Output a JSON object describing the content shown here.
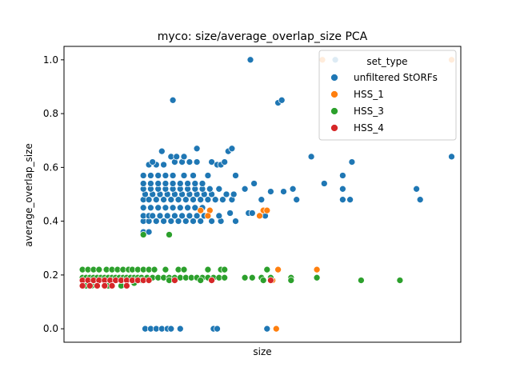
{
  "chart_data": {
    "type": "scatter",
    "title": "myco: size/average_overlap_size PCA",
    "xlabel": "size",
    "ylabel": "average_overlap_size",
    "xlim": [
      -0.1,
      2.05
    ],
    "ylim": [
      -0.05,
      1.05
    ],
    "x_ticks_shown": false,
    "yticks": [
      "0.0",
      "0.2",
      "0.4",
      "0.6",
      "0.8",
      "1.0"
    ],
    "ytick_values": [
      0.0,
      0.2,
      0.4,
      0.6,
      0.8,
      1.0
    ],
    "grid": false,
    "legend": {
      "title": "set_type",
      "placement": "upper-right"
    },
    "series": [
      {
        "name": "unfiltered StORFs",
        "color": "#1f77b4",
        "points": [
          [
            0.33,
            0.36
          ],
          [
            0.36,
            0.36
          ],
          [
            0.33,
            0.4
          ],
          [
            0.36,
            0.4
          ],
          [
            0.4,
            0.4
          ],
          [
            0.44,
            0.4
          ],
          [
            0.48,
            0.4
          ],
          [
            0.52,
            0.4
          ],
          [
            0.56,
            0.4
          ],
          [
            0.6,
            0.4
          ],
          [
            0.64,
            0.4
          ],
          [
            0.7,
            0.4
          ],
          [
            0.75,
            0.4
          ],
          [
            0.83,
            0.4
          ],
          [
            0.33,
            0.42
          ],
          [
            0.36,
            0.42
          ],
          [
            0.38,
            0.42
          ],
          [
            0.42,
            0.42
          ],
          [
            0.46,
            0.42
          ],
          [
            0.5,
            0.42
          ],
          [
            0.54,
            0.42
          ],
          [
            0.58,
            0.42
          ],
          [
            0.62,
            0.42
          ],
          [
            0.66,
            0.42
          ],
          [
            0.74,
            0.42
          ],
          [
            0.8,
            0.43
          ],
          [
            0.9,
            0.43
          ],
          [
            0.92,
            0.43
          ],
          [
            0.99,
            0.42
          ],
          [
            0.33,
            0.45
          ],
          [
            0.37,
            0.45
          ],
          [
            0.41,
            0.45
          ],
          [
            0.45,
            0.45
          ],
          [
            0.49,
            0.45
          ],
          [
            0.53,
            0.45
          ],
          [
            0.57,
            0.45
          ],
          [
            0.61,
            0.45
          ],
          [
            0.65,
            0.45
          ],
          [
            0.33,
            0.48
          ],
          [
            0.36,
            0.48
          ],
          [
            0.4,
            0.48
          ],
          [
            0.44,
            0.48
          ],
          [
            0.48,
            0.48
          ],
          [
            0.52,
            0.48
          ],
          [
            0.56,
            0.48
          ],
          [
            0.6,
            0.48
          ],
          [
            0.64,
            0.48
          ],
          [
            0.68,
            0.48
          ],
          [
            0.72,
            0.48
          ],
          [
            0.76,
            0.48
          ],
          [
            0.81,
            0.48
          ],
          [
            0.97,
            0.48
          ],
          [
            1.16,
            0.48
          ],
          [
            1.41,
            0.48
          ],
          [
            1.45,
            0.48
          ],
          [
            1.83,
            0.48
          ],
          [
            0.34,
            0.5
          ],
          [
            0.38,
            0.5
          ],
          [
            0.42,
            0.5
          ],
          [
            0.46,
            0.5
          ],
          [
            0.5,
            0.5
          ],
          [
            0.54,
            0.5
          ],
          [
            0.58,
            0.5
          ],
          [
            0.62,
            0.5
          ],
          [
            0.66,
            0.5
          ],
          [
            0.7,
            0.5
          ],
          [
            0.78,
            0.5
          ],
          [
            0.82,
            0.5
          ],
          [
            0.33,
            0.52
          ],
          [
            0.37,
            0.52
          ],
          [
            0.41,
            0.52
          ],
          [
            0.45,
            0.52
          ],
          [
            0.49,
            0.52
          ],
          [
            0.53,
            0.52
          ],
          [
            0.57,
            0.52
          ],
          [
            0.61,
            0.52
          ],
          [
            0.65,
            0.52
          ],
          [
            0.69,
            0.52
          ],
          [
            0.74,
            0.52
          ],
          [
            1.02,
            0.51
          ],
          [
            1.09,
            0.51
          ],
          [
            1.14,
            0.52
          ],
          [
            1.41,
            0.52
          ],
          [
            1.81,
            0.52
          ],
          [
            0.33,
            0.54
          ],
          [
            0.37,
            0.54
          ],
          [
            0.41,
            0.54
          ],
          [
            0.45,
            0.54
          ],
          [
            0.49,
            0.54
          ],
          [
            0.53,
            0.54
          ],
          [
            0.57,
            0.54
          ],
          [
            0.61,
            0.54
          ],
          [
            0.65,
            0.54
          ],
          [
            0.88,
            0.52
          ],
          [
            0.93,
            0.54
          ],
          [
            1.31,
            0.54
          ],
          [
            0.33,
            0.57
          ],
          [
            0.37,
            0.57
          ],
          [
            0.41,
            0.57
          ],
          [
            0.45,
            0.57
          ],
          [
            0.49,
            0.57
          ],
          [
            0.55,
            0.57
          ],
          [
            0.6,
            0.57
          ],
          [
            0.68,
            0.57
          ],
          [
            0.83,
            0.57
          ],
          [
            1.41,
            0.57
          ],
          [
            0.36,
            0.61
          ],
          [
            0.4,
            0.61
          ],
          [
            0.44,
            0.61
          ],
          [
            0.5,
            0.62
          ],
          [
            0.54,
            0.62
          ],
          [
            0.58,
            0.62
          ],
          [
            0.62,
            0.62
          ],
          [
            0.7,
            0.62
          ],
          [
            0.73,
            0.61
          ],
          [
            0.75,
            0.61
          ],
          [
            0.77,
            0.62
          ],
          [
            1.46,
            0.62
          ],
          [
            0.38,
            0.62
          ],
          [
            0.48,
            0.64
          ],
          [
            0.51,
            0.64
          ],
          [
            0.55,
            0.64
          ],
          [
            1.24,
            0.64
          ],
          [
            2.0,
            0.64
          ],
          [
            0.43,
            0.66
          ],
          [
            0.62,
            0.67
          ],
          [
            0.79,
            0.66
          ],
          [
            0.81,
            0.67
          ],
          [
            0.49,
            0.85
          ],
          [
            1.06,
            0.84
          ],
          [
            1.08,
            0.85
          ],
          [
            0.91,
            1.0
          ],
          [
            1.37,
            1.0
          ],
          [
            0.34,
            0.0
          ],
          [
            0.37,
            0.0
          ],
          [
            0.4,
            0.0
          ],
          [
            0.43,
            0.0
          ],
          [
            0.46,
            0.0
          ],
          [
            0.48,
            0.0
          ],
          [
            0.53,
            0.0
          ],
          [
            0.71,
            0.0
          ],
          [
            0.73,
            0.0
          ],
          [
            1.0,
            0.0
          ]
        ]
      },
      {
        "name": "HSS_1",
        "color": "#ff7f0e",
        "points": [
          [
            0.64,
            0.44
          ],
          [
            0.69,
            0.44
          ],
          [
            0.68,
            0.42
          ],
          [
            0.98,
            0.44
          ],
          [
            1.0,
            0.44
          ],
          [
            0.96,
            0.42
          ],
          [
            1.06,
            0.22
          ],
          [
            1.27,
            0.22
          ],
          [
            1.03,
            0.18
          ],
          [
            1.3,
            1.0
          ],
          [
            2.0,
            1.0
          ],
          [
            1.05,
            0.0
          ]
        ]
      },
      {
        "name": "HSS_3",
        "color": "#2ca02c",
        "points": [
          [
            0.0,
            0.22
          ],
          [
            0.03,
            0.22
          ],
          [
            0.06,
            0.22
          ],
          [
            0.09,
            0.22
          ],
          [
            0.13,
            0.22
          ],
          [
            0.16,
            0.22
          ],
          [
            0.19,
            0.22
          ],
          [
            0.22,
            0.22
          ],
          [
            0.25,
            0.22
          ],
          [
            0.27,
            0.22
          ],
          [
            0.3,
            0.22
          ],
          [
            0.33,
            0.22
          ],
          [
            0.36,
            0.22
          ],
          [
            0.39,
            0.22
          ],
          [
            0.45,
            0.22
          ],
          [
            0.52,
            0.22
          ],
          [
            0.55,
            0.22
          ],
          [
            0.68,
            0.22
          ],
          [
            0.75,
            0.22
          ],
          [
            0.77,
            0.22
          ],
          [
            1.0,
            0.22
          ],
          [
            0.0,
            0.19
          ],
          [
            0.02,
            0.19
          ],
          [
            0.04,
            0.19
          ],
          [
            0.06,
            0.19
          ],
          [
            0.08,
            0.19
          ],
          [
            0.1,
            0.19
          ],
          [
            0.12,
            0.19
          ],
          [
            0.14,
            0.19
          ],
          [
            0.16,
            0.19
          ],
          [
            0.18,
            0.19
          ],
          [
            0.2,
            0.19
          ],
          [
            0.22,
            0.19
          ],
          [
            0.24,
            0.19
          ],
          [
            0.26,
            0.19
          ],
          [
            0.28,
            0.19
          ],
          [
            0.3,
            0.19
          ],
          [
            0.32,
            0.19
          ],
          [
            0.35,
            0.19
          ],
          [
            0.38,
            0.19
          ],
          [
            0.41,
            0.19
          ],
          [
            0.44,
            0.19
          ],
          [
            0.47,
            0.19
          ],
          [
            0.5,
            0.19
          ],
          [
            0.53,
            0.19
          ],
          [
            0.56,
            0.19
          ],
          [
            0.59,
            0.19
          ],
          [
            0.62,
            0.19
          ],
          [
            0.65,
            0.19
          ],
          [
            0.68,
            0.19
          ],
          [
            0.71,
            0.19
          ],
          [
            0.74,
            0.19
          ],
          [
            0.77,
            0.19
          ],
          [
            0.88,
            0.19
          ],
          [
            0.92,
            0.19
          ],
          [
            0.97,
            0.19
          ],
          [
            1.02,
            0.19
          ],
          [
            1.13,
            0.19
          ],
          [
            1.27,
            0.19
          ],
          [
            0.02,
            0.16
          ],
          [
            0.05,
            0.16
          ],
          [
            0.14,
            0.16
          ],
          [
            0.21,
            0.16
          ],
          [
            0.28,
            0.17
          ],
          [
            0.32,
            0.18
          ],
          [
            0.47,
            0.18
          ],
          [
            0.64,
            0.18
          ],
          [
            0.98,
            0.18
          ],
          [
            1.13,
            0.18
          ],
          [
            1.51,
            0.18
          ],
          [
            1.72,
            0.18
          ],
          [
            0.33,
            0.35
          ],
          [
            0.47,
            0.35
          ]
        ]
      },
      {
        "name": "HSS_4",
        "color": "#d62728",
        "points": [
          [
            0.0,
            0.18
          ],
          [
            0.03,
            0.18
          ],
          [
            0.06,
            0.18
          ],
          [
            0.09,
            0.18
          ],
          [
            0.12,
            0.18
          ],
          [
            0.15,
            0.18
          ],
          [
            0.18,
            0.18
          ],
          [
            0.21,
            0.18
          ],
          [
            0.24,
            0.18
          ],
          [
            0.27,
            0.18
          ],
          [
            0.3,
            0.18
          ],
          [
            0.33,
            0.18
          ],
          [
            0.36,
            0.18
          ],
          [
            0.5,
            0.18
          ],
          [
            0.7,
            0.18
          ],
          [
            1.02,
            0.18
          ],
          [
            0.0,
            0.16
          ],
          [
            0.04,
            0.16
          ],
          [
            0.08,
            0.16
          ],
          [
            0.12,
            0.16
          ],
          [
            0.16,
            0.16
          ],
          [
            0.24,
            0.16
          ]
        ]
      }
    ]
  }
}
